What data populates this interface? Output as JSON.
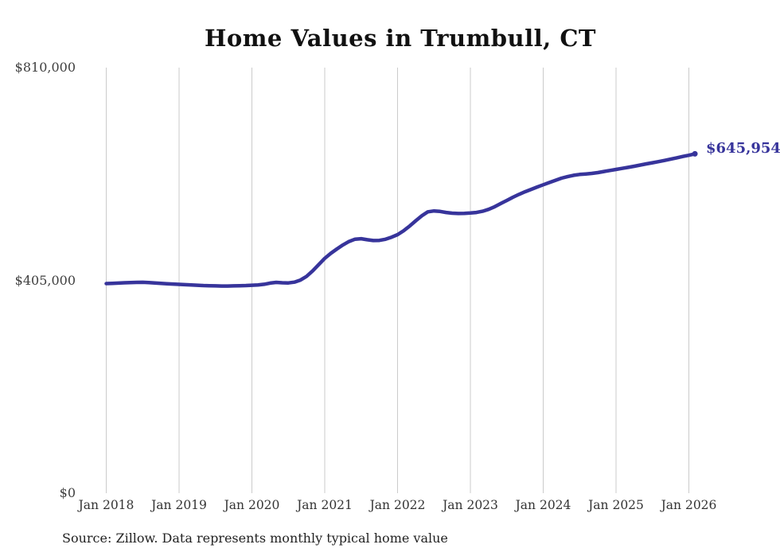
{
  "chart_data": {
    "type": "line",
    "title": "Home Values in Trumbull, CT",
    "source": "Source: Zillow. Data represents monthly typical home value",
    "end_label": "$645,954",
    "current_value": 645954,
    "line_color": "#37349b",
    "grid_color": "#cbcbcb",
    "ylim": [
      0,
      810000
    ],
    "grid": "vertical-only",
    "legend": "none",
    "y_ticks": [
      {
        "value": 0,
        "label": "$0"
      },
      {
        "value": 405000,
        "label": "$405,000"
      },
      {
        "value": 810000,
        "label": "$810,000"
      }
    ],
    "x_ticks": [
      "Jan 2018",
      "Jan 2019",
      "Jan 2020",
      "Jan 2021",
      "Jan 2022",
      "Jan 2023",
      "Jan 2024",
      "Jan 2025",
      "Jan 2026"
    ],
    "x": [
      "2018-01",
      "2018-02",
      "2018-03",
      "2018-04",
      "2018-05",
      "2018-06",
      "2018-07",
      "2018-08",
      "2018-09",
      "2018-10",
      "2018-11",
      "2018-12",
      "2019-01",
      "2019-02",
      "2019-03",
      "2019-04",
      "2019-05",
      "2019-06",
      "2019-07",
      "2019-08",
      "2019-09",
      "2019-10",
      "2019-11",
      "2019-12",
      "2020-01",
      "2020-02",
      "2020-03",
      "2020-04",
      "2020-05",
      "2020-06",
      "2020-07",
      "2020-08",
      "2020-09",
      "2020-10",
      "2020-11",
      "2020-12",
      "2021-01",
      "2021-02",
      "2021-03",
      "2021-04",
      "2021-05",
      "2021-06",
      "2021-07",
      "2021-08",
      "2021-09",
      "2021-10",
      "2021-11",
      "2021-12",
      "2022-01",
      "2022-02",
      "2022-03",
      "2022-04",
      "2022-05",
      "2022-06",
      "2022-07",
      "2022-08",
      "2022-09",
      "2022-10",
      "2022-11",
      "2022-12",
      "2023-01",
      "2023-02",
      "2023-03",
      "2023-04",
      "2023-05",
      "2023-06",
      "2023-07",
      "2023-08",
      "2023-09",
      "2023-10",
      "2023-11",
      "2023-12",
      "2024-01",
      "2024-02",
      "2024-03",
      "2024-04",
      "2024-05",
      "2024-06",
      "2024-07",
      "2024-08",
      "2024-09",
      "2024-10",
      "2024-11",
      "2024-12",
      "2025-01",
      "2025-02",
      "2025-03",
      "2025-04",
      "2025-05",
      "2025-06",
      "2025-07",
      "2025-08",
      "2025-09",
      "2025-10",
      "2025-11",
      "2025-12",
      "2026-01",
      "2026-02"
    ],
    "values": [
      399000,
      399400,
      399900,
      400400,
      400900,
      401200,
      401300,
      400900,
      400200,
      399400,
      398600,
      398000,
      397400,
      396800,
      396200,
      395700,
      395200,
      394800,
      394500,
      394300,
      394300,
      394500,
      394800,
      395200,
      395700,
      396400,
      397600,
      399800,
      401200,
      400400,
      400100,
      401600,
      405600,
      412500,
      423000,
      435000,
      447000,
      456500,
      464800,
      472500,
      479000,
      483500,
      484300,
      482400,
      480800,
      481200,
      483200,
      487200,
      492000,
      499500,
      508500,
      518500,
      528000,
      535500,
      537200,
      536300,
      534300,
      532900,
      532300,
      532600,
      533200,
      534300,
      536600,
      540200,
      545200,
      551200,
      557200,
      563200,
      568700,
      573700,
      578200,
      582700,
      587000,
      591200,
      595500,
      599500,
      602500,
      605000,
      606600,
      607600,
      608700,
      610200,
      612200,
      614200,
      616200,
      618200,
      620200,
      622300,
      624600,
      626800,
      628900,
      631000,
      633300,
      635800,
      638300,
      640900,
      643200,
      645954
    ]
  }
}
